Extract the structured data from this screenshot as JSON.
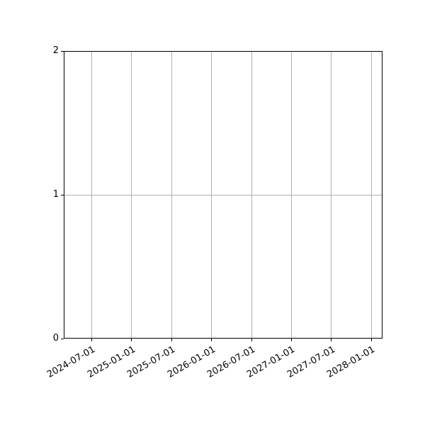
{
  "chart_data": {
    "type": "line",
    "title": "",
    "xlabel": "",
    "ylabel": "",
    "series": [],
    "x_tick_labels": [
      "2024-07-01",
      "2025-01-01",
      "2025-07-01",
      "2026-01-01",
      "2026-07-01",
      "2027-01-01",
      "2027-07-01",
      "2028-01-01"
    ],
    "y_ticks": [
      0,
      1,
      2
    ],
    "y_tick_labels": [
      "0",
      "1",
      "2"
    ],
    "ylim": [
      0,
      2
    ],
    "grid": true,
    "legend": false,
    "x_tick_rotation_deg": 30,
    "colors": {
      "background": "#ffffff",
      "axis": "#000000",
      "grid": "#b0b0b0",
      "tick_text": "#000000"
    }
  }
}
